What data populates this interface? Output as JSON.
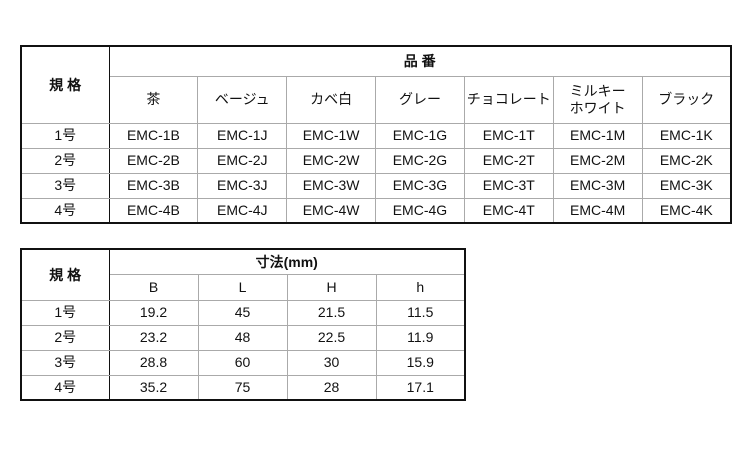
{
  "table1": {
    "spec_header": "規 格",
    "group_header": "品 番",
    "columns": [
      "茶",
      "ベージュ",
      "カベ白",
      "グレー",
      "チョコレート",
      "ミルキーホワイト",
      "ブラック"
    ],
    "column_display": [
      "茶",
      "ベージュ",
      "カベ白",
      "グレー",
      "チョコレート",
      "ミルキー\nホワイト",
      "ブラック"
    ],
    "rows": [
      {
        "spec": "1号",
        "values": [
          "EMC-1B",
          "EMC-1J",
          "EMC-1W",
          "EMC-1G",
          "EMC-1T",
          "EMC-1M",
          "EMC-1K"
        ]
      },
      {
        "spec": "2号",
        "values": [
          "EMC-2B",
          "EMC-2J",
          "EMC-2W",
          "EMC-2G",
          "EMC-2T",
          "EMC-2M",
          "EMC-2K"
        ]
      },
      {
        "spec": "3号",
        "values": [
          "EMC-3B",
          "EMC-3J",
          "EMC-3W",
          "EMC-3G",
          "EMC-3T",
          "EMC-3M",
          "EMC-3K"
        ]
      },
      {
        "spec": "4号",
        "values": [
          "EMC-4B",
          "EMC-4J",
          "EMC-4W",
          "EMC-4G",
          "EMC-4T",
          "EMC-4M",
          "EMC-4K"
        ]
      }
    ]
  },
  "table2": {
    "spec_header": "規 格",
    "group_header": "寸法(mm)",
    "columns": [
      "B",
      "L",
      "H",
      "h"
    ],
    "rows": [
      {
        "spec": "1号",
        "values": [
          "19.2",
          "45",
          "21.5",
          "11.5"
        ]
      },
      {
        "spec": "2号",
        "values": [
          "23.2",
          "48",
          "22.5",
          "11.9"
        ]
      },
      {
        "spec": "3号",
        "values": [
          "28.8",
          "60",
          "30",
          "15.9"
        ]
      },
      {
        "spec": "4号",
        "values": [
          "35.2",
          "75",
          "28",
          "17.1"
        ]
      }
    ]
  }
}
